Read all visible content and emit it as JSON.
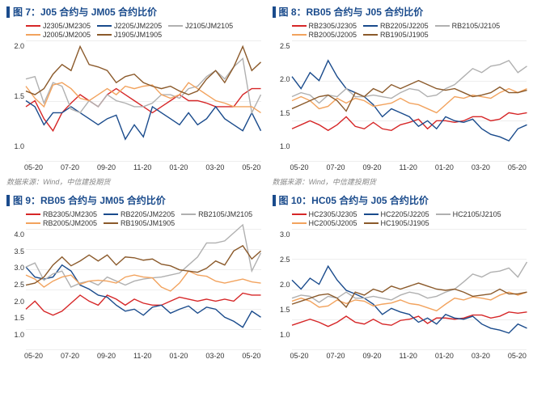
{
  "colors": {
    "s1": "#d62728",
    "s2": "#1a4b8c",
    "s3": "#b0b0b0",
    "s4": "#f2a35e",
    "s5": "#8b5a2b",
    "grid": "#eeeeee",
    "title": "#1a4b8c"
  },
  "source_label": "数据来源：Wind，中信建投期货",
  "panels": [
    {
      "id": "p7",
      "title": "图 7：J05 合约与 JM05 合约比价",
      "series": [
        {
          "label": "J2305/JM2305",
          "color": "s1",
          "data": [
            1.45,
            1.5,
            1.35,
            1.25,
            1.4,
            1.48,
            1.55,
            1.5,
            1.45,
            1.55,
            1.6,
            1.55,
            1.5,
            1.45,
            1.4,
            1.45,
            1.5,
            1.55,
            1.5,
            1.5,
            1.48,
            1.45,
            1.45,
            1.45,
            1.55,
            1.6,
            1.6
          ]
        },
        {
          "label": "J2205/JM2205",
          "color": "s2",
          "data": [
            1.5,
            1.45,
            1.3,
            1.4,
            1.4,
            1.45,
            1.4,
            1.35,
            1.3,
            1.35,
            1.38,
            1.18,
            1.3,
            1.2,
            1.45,
            1.4,
            1.35,
            1.3,
            1.4,
            1.3,
            1.35,
            1.45,
            1.35,
            1.3,
            1.25,
            1.4,
            1.25
          ]
        },
        {
          "label": "J2105/JM2105",
          "color": "s3",
          "data": [
            1.68,
            1.7,
            1.48,
            1.65,
            1.62,
            1.43,
            1.4,
            1.5,
            1.45,
            1.55,
            1.5,
            1.48,
            1.45,
            1.45,
            1.48,
            1.55,
            1.55,
            1.52,
            1.6,
            1.62,
            1.7,
            1.75,
            1.68,
            1.78,
            1.85,
            1.4,
            1.55
          ]
        },
        {
          "label": "J2005/JM2005",
          "color": "s4",
          "data": [
            1.62,
            1.52,
            1.45,
            1.63,
            1.65,
            1.6,
            1.52,
            1.5,
            1.55,
            1.6,
            1.55,
            1.62,
            1.6,
            1.62,
            1.63,
            1.55,
            1.52,
            1.55,
            1.65,
            1.6,
            1.55,
            1.5,
            1.48,
            1.45,
            1.45,
            1.45,
            1.4
          ]
        },
        {
          "label": "J1905/JM1905",
          "color": "s5",
          "data": [
            1.58,
            1.55,
            1.6,
            1.72,
            1.8,
            1.75,
            1.95,
            1.8,
            1.78,
            1.75,
            1.65,
            1.7,
            1.72,
            1.65,
            1.62,
            1.6,
            1.62,
            1.58,
            1.55,
            1.58,
            1.68,
            1.75,
            1.65,
            1.78,
            1.95,
            1.75,
            1.82
          ]
        }
      ],
      "y": {
        "min": 1.0,
        "max": 2.0,
        "ticks": [
          "2.0",
          "1.5",
          "1.0"
        ]
      },
      "x_ticks": [
        "05-20",
        "07-20",
        "09-20",
        "11-20",
        "01-20",
        "03-20",
        "05-20"
      ]
    },
    {
      "id": "p8",
      "title": "图 8：RB05 合约与 J05 合约比价",
      "series": [
        {
          "label": "RB2305/J2305",
          "color": "s1",
          "data": [
            1.4,
            1.45,
            1.5,
            1.45,
            1.38,
            1.45,
            1.55,
            1.43,
            1.4,
            1.48,
            1.4,
            1.38,
            1.45,
            1.48,
            1.52,
            1.4,
            1.5,
            1.5,
            1.48,
            1.5,
            1.55,
            1.55,
            1.5,
            1.52,
            1.6,
            1.58,
            1.6
          ]
        },
        {
          "label": "RB2205/J2205",
          "color": "s2",
          "data": [
            2.05,
            1.9,
            2.1,
            2.0,
            2.25,
            2.05,
            1.9,
            1.85,
            1.8,
            1.7,
            1.55,
            1.65,
            1.6,
            1.55,
            1.43,
            1.5,
            1.4,
            1.55,
            1.5,
            1.48,
            1.52,
            1.4,
            1.33,
            1.3,
            1.25,
            1.4,
            1.45
          ]
        },
        {
          "label": "RB2105/J2105",
          "color": "s3",
          "data": [
            1.8,
            1.85,
            1.82,
            1.72,
            1.82,
            1.8,
            1.9,
            1.8,
            1.8,
            1.82,
            1.8,
            1.78,
            1.85,
            1.9,
            1.88,
            1.8,
            1.82,
            1.9,
            1.95,
            2.05,
            2.15,
            2.1,
            2.18,
            2.2,
            2.25,
            2.1,
            2.18
          ]
        },
        {
          "label": "RB2005/J2005",
          "color": "s4",
          "data": [
            1.75,
            1.8,
            1.75,
            1.65,
            1.68,
            1.78,
            1.72,
            1.78,
            1.75,
            1.68,
            1.7,
            1.72,
            1.78,
            1.72,
            1.7,
            1.65,
            1.6,
            1.7,
            1.8,
            1.78,
            1.82,
            1.8,
            1.78,
            1.85,
            1.9,
            1.85,
            1.9
          ]
        },
        {
          "label": "RB1905/J1905",
          "color": "s5",
          "data": [
            1.65,
            1.7,
            1.75,
            1.8,
            1.82,
            1.75,
            1.62,
            1.85,
            1.8,
            1.9,
            1.85,
            1.95,
            1.9,
            1.95,
            2.0,
            1.95,
            1.9,
            1.88,
            1.9,
            1.85,
            1.8,
            1.82,
            1.85,
            1.92,
            1.85,
            1.85,
            1.88
          ]
        }
      ],
      "y": {
        "min": 1.0,
        "max": 2.5,
        "ticks": [
          "2.5",
          "2.0",
          "1.5",
          "1.0"
        ]
      },
      "x_ticks": [
        "05-20",
        "07-20",
        "09-20",
        "11-20",
        "01-20",
        "03-20",
        "05-20"
      ]
    },
    {
      "id": "p9",
      "title": "图 9：RB05 合约与 JM05 合约比价",
      "series": [
        {
          "label": "RB2305/JM2305",
          "color": "s1",
          "data": [
            2.0,
            2.2,
            1.95,
            1.85,
            1.95,
            2.15,
            2.35,
            2.2,
            2.1,
            2.35,
            2.25,
            2.1,
            2.25,
            2.15,
            2.1,
            2.1,
            2.2,
            2.3,
            2.25,
            2.2,
            2.25,
            2.2,
            2.25,
            2.2,
            2.4,
            2.35,
            2.35
          ]
        },
        {
          "label": "RB2205/JM2205",
          "color": "s2",
          "data": [
            3.05,
            2.8,
            2.75,
            2.8,
            3.1,
            2.95,
            2.6,
            2.5,
            2.35,
            2.3,
            2.1,
            1.95,
            2.0,
            1.85,
            2.05,
            2.1,
            1.9,
            2.0,
            2.08,
            1.9,
            2.05,
            2.0,
            1.8,
            1.7,
            1.55,
            1.95,
            1.8
          ]
        },
        {
          "label": "RB2105/JM2105",
          "color": "s3",
          "data": [
            3.05,
            3.15,
            2.72,
            2.88,
            2.95,
            2.55,
            2.65,
            2.7,
            2.6,
            2.8,
            2.7,
            2.6,
            2.7,
            2.75,
            2.78,
            2.8,
            2.85,
            2.9,
            3.1,
            3.3,
            3.65,
            3.65,
            3.7,
            3.9,
            4.1,
            2.95,
            3.4
          ]
        },
        {
          "label": "RB2005/JM2005",
          "color": "s4",
          "data": [
            2.85,
            2.75,
            2.55,
            2.7,
            2.8,
            2.85,
            2.62,
            2.7,
            2.72,
            2.7,
            2.65,
            2.8,
            2.85,
            2.8,
            2.78,
            2.55,
            2.45,
            2.65,
            2.95,
            2.85,
            2.82,
            2.7,
            2.65,
            2.7,
            2.75,
            2.68,
            2.65
          ]
        },
        {
          "label": "RB1905/JM1905",
          "color": "s5",
          "data": [
            2.6,
            2.65,
            2.8,
            3.1,
            3.3,
            3.08,
            3.2,
            3.35,
            3.2,
            3.35,
            3.1,
            3.3,
            3.28,
            3.22,
            3.25,
            3.12,
            3.08,
            2.98,
            2.95,
            2.92,
            3.02,
            3.2,
            3.1,
            3.45,
            3.58,
            3.25,
            3.45
          ]
        }
      ],
      "y": {
        "min": 1.0,
        "max": 4.0,
        "ticks": [
          "4.0",
          "3.5",
          "3.0",
          "2.5",
          "2.0",
          "1.5",
          "1.0"
        ]
      },
      "x_ticks": [
        "05-20",
        "07-20",
        "09-20",
        "11-20",
        "01-20",
        "03-20",
        "05-20"
      ]
    },
    {
      "id": "p10",
      "title": "图 10：HC05 合约与 J05 合约比价",
      "series": [
        {
          "label": "HC2305/J2305",
          "color": "s1",
          "data": [
            1.4,
            1.45,
            1.5,
            1.45,
            1.38,
            1.45,
            1.55,
            1.45,
            1.42,
            1.5,
            1.42,
            1.4,
            1.48,
            1.5,
            1.55,
            1.43,
            1.52,
            1.52,
            1.5,
            1.52,
            1.57,
            1.57,
            1.52,
            1.55,
            1.62,
            1.6,
            1.62
          ]
        },
        {
          "label": "HC2205/J2205",
          "color": "s2",
          "data": [
            2.15,
            2.0,
            2.18,
            2.08,
            2.38,
            2.15,
            1.98,
            1.92,
            1.85,
            1.75,
            1.58,
            1.68,
            1.62,
            1.58,
            1.45,
            1.52,
            1.42,
            1.58,
            1.52,
            1.5,
            1.55,
            1.42,
            1.35,
            1.32,
            1.27,
            1.42,
            1.35
          ]
        },
        {
          "label": "HC2105/J2105",
          "color": "s3",
          "data": [
            1.85,
            1.9,
            1.88,
            1.78,
            1.88,
            1.85,
            1.95,
            1.85,
            1.85,
            1.88,
            1.85,
            1.82,
            1.9,
            1.95,
            1.92,
            1.85,
            1.88,
            1.95,
            2.0,
            2.12,
            2.25,
            2.2,
            2.28,
            2.3,
            2.35,
            2.2,
            2.45
          ]
        },
        {
          "label": "HC2005/J2005",
          "color": "s4",
          "data": [
            1.8,
            1.85,
            1.8,
            1.7,
            1.72,
            1.82,
            1.76,
            1.82,
            1.8,
            1.72,
            1.75,
            1.77,
            1.82,
            1.76,
            1.74,
            1.69,
            1.64,
            1.75,
            1.85,
            1.82,
            1.87,
            1.85,
            1.82,
            1.9,
            1.95,
            1.9,
            1.95
          ]
        },
        {
          "label": "HC1905/J1905",
          "color": "s5",
          "data": [
            1.75,
            1.8,
            1.85,
            1.9,
            1.92,
            1.85,
            1.7,
            1.95,
            1.9,
            2.0,
            1.95,
            2.05,
            2.0,
            2.05,
            2.1,
            2.05,
            2.0,
            1.98,
            2.0,
            1.95,
            1.88,
            1.9,
            1.92,
            2.0,
            1.92,
            1.92,
            1.95
          ]
        }
      ],
      "y": {
        "min": 1.0,
        "max": 3.0,
        "ticks": [
          "3.0",
          "2.5",
          "2.0",
          "1.5",
          "1.0"
        ]
      },
      "x_ticks": [
        "05-20",
        "07-20",
        "09-20",
        "11-20",
        "01-20",
        "03-20",
        "05-20"
      ]
    }
  ]
}
